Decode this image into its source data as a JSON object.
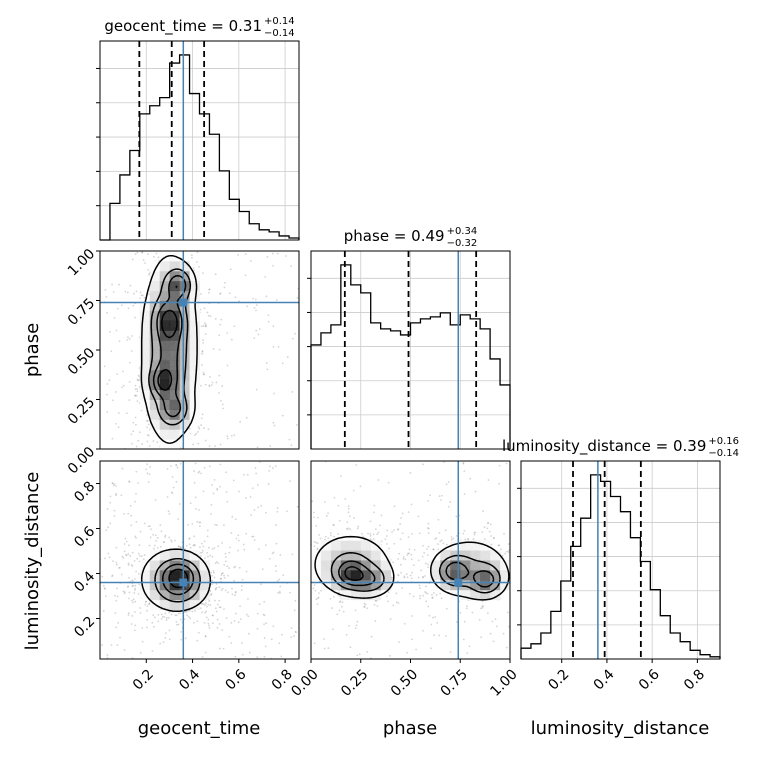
{
  "chart_data": {
    "type": "corner",
    "parameters": [
      "geocent_time",
      "phase",
      "luminosity_distance"
    ],
    "injection": {
      "geocent_time": 0.36,
      "phase": 0.74,
      "luminosity_distance": 0.36
    },
    "ranges": {
      "geocent_time": [
        0.0,
        0.86
      ],
      "phase": [
        0.0,
        1.0
      ],
      "luminosity_distance": [
        0.02,
        0.9
      ]
    },
    "ticks": {
      "geocent_time": [
        "0.2",
        "0.4",
        "0.6",
        "0.8"
      ],
      "phase": [
        "0.00",
        "0.25",
        "0.50",
        "0.75",
        "1.00"
      ],
      "luminosity_distance": [
        "0.2",
        "0.4",
        "0.6",
        "0.8"
      ]
    },
    "titles": [
      {
        "param": "geocent_time",
        "name": "geocent_time",
        "value": "0.31",
        "plus": "+0.14",
        "minus": "−0.14"
      },
      {
        "param": "phase",
        "name": "phase",
        "value": "0.49",
        "plus": "+0.34",
        "minus": "−0.32"
      },
      {
        "param": "luminosity_distance",
        "name": "luminosity_distance",
        "value": "0.39",
        "plus": "+0.16",
        "minus": "−0.14"
      }
    ],
    "quantiles": {
      "geocent_time": [
        0.17,
        0.31,
        0.45
      ],
      "phase": [
        0.17,
        0.49,
        0.83
      ],
      "luminosity_distance": [
        0.25,
        0.39,
        0.55
      ]
    },
    "histograms": {
      "geocent_time": {
        "edges": [
          0.0,
          0.043,
          0.086,
          0.129,
          0.172,
          0.215,
          0.258,
          0.301,
          0.344,
          0.387,
          0.43,
          0.473,
          0.516,
          0.559,
          0.602,
          0.645,
          0.688,
          0.731,
          0.774,
          0.817,
          0.86
        ],
        "counts": [
          0.0,
          0.18,
          0.32,
          0.44,
          0.62,
          0.66,
          0.7,
          0.87,
          0.91,
          0.72,
          0.62,
          0.52,
          0.34,
          0.2,
          0.14,
          0.08,
          0.05,
          0.04,
          0.02,
          0.01
        ]
      },
      "phase": {
        "edges": [
          0.0,
          0.05,
          0.1,
          0.15,
          0.2,
          0.25,
          0.3,
          0.35,
          0.4,
          0.45,
          0.5,
          0.55,
          0.6,
          0.65,
          0.7,
          0.75,
          0.8,
          0.85,
          0.9,
          0.95,
          1.0
        ],
        "counts": [
          0.52,
          0.58,
          0.62,
          0.92,
          0.82,
          0.78,
          0.63,
          0.6,
          0.59,
          0.57,
          0.63,
          0.65,
          0.66,
          0.68,
          0.62,
          0.67,
          0.65,
          0.6,
          0.45,
          0.32
        ]
      },
      "luminosity_distance": {
        "edges": [
          0.02,
          0.064,
          0.108,
          0.152,
          0.196,
          0.24,
          0.284,
          0.328,
          0.372,
          0.416,
          0.46,
          0.504,
          0.548,
          0.592,
          0.636,
          0.68,
          0.724,
          0.768,
          0.812,
          0.856,
          0.9
        ],
        "counts": [
          0.05,
          0.07,
          0.12,
          0.22,
          0.36,
          0.52,
          0.65,
          0.85,
          0.82,
          0.75,
          0.68,
          0.56,
          0.45,
          0.32,
          0.2,
          0.12,
          0.08,
          0.04,
          0.02,
          0.01
        ]
      }
    },
    "density_2d": [
      {
        "x": "geocent_time",
        "y": "phase",
        "modes": [
          {
            "x": 0.34,
            "y": 0.83,
            "sx": 0.035,
            "sy": 0.05,
            "w": 1.0
          },
          {
            "x": 0.3,
            "y": 0.65,
            "sx": 0.04,
            "sy": 0.06,
            "w": 0.8
          },
          {
            "x": 0.27,
            "y": 0.34,
            "sx": 0.035,
            "sy": 0.05,
            "w": 0.85
          },
          {
            "x": 0.32,
            "y": 0.2,
            "sx": 0.04,
            "sy": 0.05,
            "w": 0.7
          },
          {
            "x": 0.3,
            "y": 0.5,
            "sx": 0.05,
            "sy": 0.2,
            "w": 0.7
          },
          {
            "x": 0.3,
            "y": 0.5,
            "sx": 0.09,
            "sy": 0.35,
            "w": 0.45
          }
        ]
      },
      {
        "x": "geocent_time",
        "y": "luminosity_distance",
        "modes": [
          {
            "x": 0.34,
            "y": 0.4,
            "sx": 0.05,
            "sy": 0.04,
            "w": 1.0
          },
          {
            "x": 0.34,
            "y": 0.34,
            "sx": 0.06,
            "sy": 0.05,
            "w": 0.85
          },
          {
            "x": 0.32,
            "y": 0.38,
            "sx": 0.11,
            "sy": 0.1,
            "w": 0.55
          }
        ]
      },
      {
        "x": "phase",
        "y": "luminosity_distance",
        "modes": [
          {
            "x": 0.2,
            "y": 0.4,
            "sx": 0.05,
            "sy": 0.04,
            "w": 1.0
          },
          {
            "x": 0.3,
            "y": 0.37,
            "sx": 0.06,
            "sy": 0.04,
            "w": 0.7
          },
          {
            "x": 0.72,
            "y": 0.41,
            "sx": 0.05,
            "sy": 0.04,
            "w": 0.9
          },
          {
            "x": 0.88,
            "y": 0.37,
            "sx": 0.05,
            "sy": 0.04,
            "w": 0.9
          },
          {
            "x": 0.2,
            "y": 0.44,
            "sx": 0.13,
            "sy": 0.09,
            "w": 0.6
          },
          {
            "x": 0.8,
            "y": 0.42,
            "sx": 0.13,
            "sy": 0.09,
            "w": 0.55
          }
        ]
      }
    ],
    "grid": true,
    "colors": {
      "truth": "#4682b4",
      "line": "#000000",
      "scatter": "#888888"
    }
  }
}
